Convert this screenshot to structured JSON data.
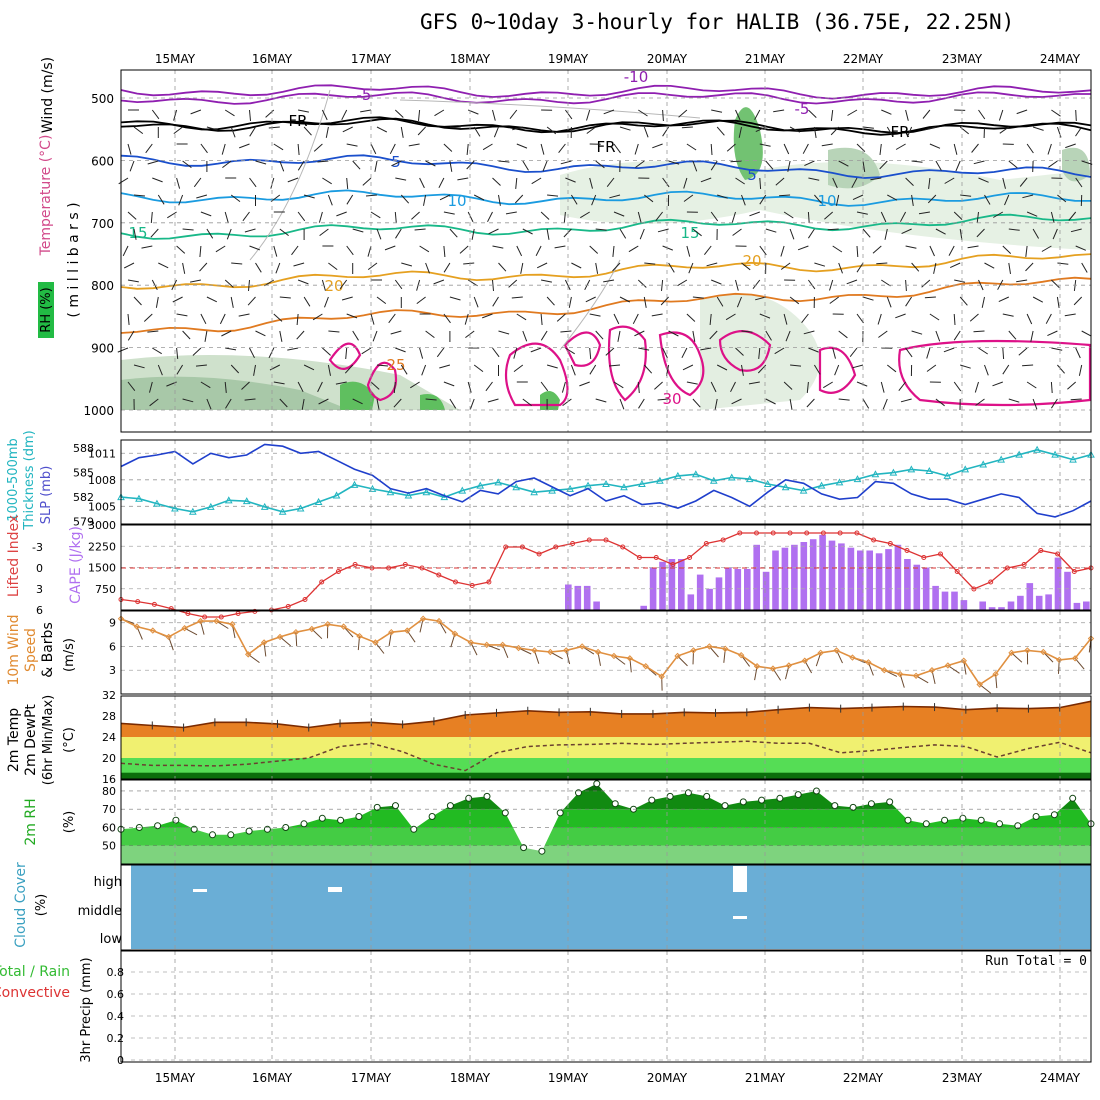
{
  "title": "GFS 0~10day 3-hourly for HALIB (36.75E, 22.25N)",
  "dates": [
    "15MAY",
    "16MAY",
    "17MAY",
    "18MAY",
    "19MAY",
    "20MAY",
    "21MAY",
    "22MAY",
    "23MAY",
    "24MAY"
  ],
  "panel_labels": {
    "upper_wind": "Wind (m/s)",
    "upper_temp": "Temperature (°C)",
    "upper_rh": "RH (%)",
    "upper_p": "( m i l l i b a r s )",
    "thick_1": "1000-500mb",
    "thick_2": "Thickness (dm)",
    "slp": "SLP (mb)",
    "li": "Lifted Index",
    "cape": "CAPE (J/kg)",
    "wind10_1": "10m Wind",
    "wind10_2": "Speed",
    "wind10_3": "& Barbs",
    "wind10_unit": "(m/s)",
    "t2_1": "2m Temp",
    "t2_2": "2m DewPt",
    "t2_3": "(6hr Min/Max)",
    "t2_unit": "(°C)",
    "rh2_1": "2m RH",
    "rh2_unit": "(%)",
    "cloud_1": "Cloud Cover",
    "cloud_unit": "(%)",
    "precip_1": "Total / Rain",
    "precip_2": "Convective",
    "precip_3": "3hr Precip (mm)",
    "run_total": "Run Total = 0"
  },
  "colors": {
    "slp": "#1f3fcc",
    "thickness": "#22b5c0",
    "lifted_index": "#dd3333",
    "cape": "#b070f0",
    "wind_speed": "#e09040",
    "rh_dark": "#008800",
    "rh_mid": "#22cc22",
    "rh_light": "#66dd66",
    "cloud_bg": "#6aaed6",
    "temp_band_hot": "#f0a030",
    "temp_band_warm": "#f0f070",
    "temp_band_cool": "#55dd55"
  },
  "chart_data": [
    {
      "type": "area",
      "panel": "upper-air cross section",
      "yaxis": "pressure (mb)",
      "y_ticks": [
        500,
        600,
        700,
        800,
        900,
        1000
      ],
      "isotherm_labels": [
        "-10",
        "-5",
        "FR",
        "5",
        "10",
        "15",
        "20",
        "25",
        "30"
      ]
    },
    {
      "type": "line",
      "panel": "thickness & slp",
      "thickness_ticks": [
        579,
        582,
        585,
        588
      ],
      "slp_ticks": [
        1005,
        1008,
        1011
      ],
      "series": [
        {
          "name": "SLP",
          "values": [
            1009.5,
            1010.5,
            1010.8,
            1011.2,
            1009.8,
            1011.0,
            1010.5,
            1010.8,
            1012.0,
            1011.8,
            1011.0,
            1011.2,
            1010.2,
            1009.2,
            1008.5,
            1007.0,
            1006.5,
            1007.0,
            1006.2,
            1005.5,
            1006.8,
            1006.4,
            1007.8,
            1008.2,
            1007.2,
            1006.2,
            1007.0,
            1005.6,
            1006.2,
            1005.2,
            1005.4,
            1004.8,
            1005.6,
            1006.8,
            1006.0,
            1005.0,
            1006.6,
            1008.0,
            1007.6,
            1006.4,
            1005.8,
            1006.0,
            1007.8,
            1007.6,
            1006.4,
            1005.8,
            1005.8,
            1005.2,
            1005.8,
            1006.4,
            1006.0,
            1004.2,
            1003.8,
            1004.5,
            1005.6
          ]
        },
        {
          "name": "Thickness",
          "values": [
            582.0,
            581.8,
            581.2,
            580.6,
            580.2,
            580.8,
            581.6,
            581.5,
            580.8,
            580.2,
            580.6,
            581.4,
            582.2,
            583.5,
            583.0,
            582.6,
            582.2,
            582.6,
            582.0,
            582.8,
            583.4,
            583.8,
            583.2,
            582.6,
            582.8,
            583.0,
            583.4,
            583.6,
            583.2,
            583.6,
            584.0,
            584.6,
            584.8,
            584.0,
            584.4,
            584.2,
            583.6,
            583.2,
            582.8,
            583.4,
            583.8,
            584.2,
            584.8,
            585.0,
            585.4,
            585.2,
            584.6,
            585.4,
            586.0,
            586.6,
            587.2,
            587.8,
            587.2,
            586.6,
            587.2
          ]
        }
      ]
    },
    {
      "type": "bar",
      "panel": "lifted index & cape",
      "cape_ticks": [
        750,
        1500,
        2250,
        3000
      ],
      "li_ticks": [
        -3,
        0,
        3,
        6
      ],
      "series": [
        {
          "name": "CAPE",
          "values": [
            0,
            0,
            0,
            0,
            0,
            0,
            0,
            0,
            0,
            0,
            0,
            0,
            0,
            0,
            0,
            0,
            0,
            0,
            0,
            0,
            0,
            0,
            0,
            0,
            0,
            0,
            0,
            0,
            0,
            0,
            0,
            0,
            0,
            0,
            0,
            0,
            0,
            0,
            0,
            0,
            0,
            0,
            0,
            0,
            0,
            0,
            0,
            900,
            850,
            850,
            300,
            0,
            0,
            0,
            0,
            150,
            1500,
            1700,
            1800,
            1800,
            550,
            1250,
            750,
            1150,
            1500,
            1450,
            1450,
            2300,
            1350,
            2100,
            2200,
            2300,
            2400,
            2500,
            2650,
            2450,
            2350,
            2200,
            2100,
            2100,
            2000,
            2150,
            2300,
            1800,
            1600,
            1500,
            850,
            650,
            650,
            350,
            0,
            300,
            100,
            100,
            300,
            500,
            950,
            500,
            550,
            1850,
            1350,
            250,
            300
          ]
        },
        {
          "name": "Lifted Index",
          "values": [
            4.5,
            4.8,
            5.2,
            5.8,
            6.5,
            7,
            7,
            6.5,
            6.2,
            6,
            5.5,
            4.5,
            2,
            0.5,
            -0.5,
            0,
            0,
            -0.5,
            0,
            1,
            2,
            2.5,
            2,
            -3,
            -3,
            -2,
            -3,
            -3.5,
            -4,
            -4,
            -3,
            -1.5,
            -1.5,
            -0.5,
            -1.5,
            -3.5,
            -4,
            -5,
            -5,
            -5,
            -5,
            -5,
            -5,
            -5,
            -5,
            -4,
            -3.5,
            -2.5,
            -1.5,
            -2,
            0.5,
            3,
            2,
            0,
            -0.5,
            -2.5,
            -2,
            0.5,
            0
          ]
        }
      ]
    },
    {
      "type": "line",
      "panel": "10m wind speed",
      "y_ticks": [
        3,
        6,
        9
      ],
      "series": [
        {
          "name": "10m Wind Speed",
          "values": [
            9.5,
            8.5,
            8,
            7.2,
            8.3,
            9.2,
            9.2,
            8.8,
            5,
            6.5,
            7.2,
            7.8,
            8.2,
            8.8,
            8.5,
            7.3,
            6.5,
            7.8,
            8,
            9.5,
            9.2,
            7.6,
            6.5,
            6.2,
            6.2,
            5.8,
            5.5,
            5.3,
            5.5,
            6,
            5.3,
            4.8,
            4.5,
            3.5,
            2.2,
            4.8,
            5.5,
            6,
            5.7,
            4.9,
            3.5,
            3.2,
            3.6,
            4.2,
            5.2,
            5.5,
            4.6,
            4,
            3,
            2.5,
            2.3,
            3,
            3.6,
            4.2,
            1.2,
            2.5,
            5.2,
            5.5,
            5.3,
            4.3,
            4.5,
            7
          ]
        }
      ]
    },
    {
      "type": "area",
      "panel": "2m temp & dewpoint",
      "y_ticks": [
        16,
        20,
        24,
        28,
        32
      ],
      "series": [
        {
          "name": "2m Temp",
          "values": [
            26.6,
            26.2,
            25.8,
            26.8,
            26.8,
            26.5,
            25.8,
            26.6,
            26.8,
            26.4,
            27,
            28.2,
            28.6,
            29,
            28.7,
            28.8,
            28.4,
            28.4,
            28.7,
            28.6,
            28.7,
            29.2,
            29.6,
            29.4,
            29.6,
            29.8,
            29.7,
            29.2,
            29.5,
            29.4,
            29.6,
            30.8
          ]
        },
        {
          "name": "2m DewPt",
          "values": [
            19,
            18.6,
            18.6,
            18.5,
            18.8,
            19.4,
            20,
            22.2,
            22.8,
            21.2,
            18.8,
            17.6,
            21,
            22.2,
            22.5,
            22.6,
            22.8,
            22.6,
            22.8,
            23,
            23.2,
            22.8,
            22.8,
            21,
            21.4,
            22,
            22.5,
            22.2,
            20.2,
            21.8,
            23,
            21
          ]
        }
      ]
    },
    {
      "type": "area",
      "panel": "2m RH",
      "y_ticks": [
        50,
        60,
        70,
        80
      ],
      "series": [
        {
          "name": "2m RH",
          "values": [
            59,
            60,
            61,
            64,
            59,
            56,
            56,
            58,
            59,
            60,
            62,
            65,
            64,
            66,
            71,
            72,
            59,
            66,
            72,
            76,
            77,
            68,
            49,
            47,
            68,
            79,
            84,
            73,
            70,
            75,
            77,
            79,
            77,
            72,
            74,
            75,
            76,
            78,
            80,
            72,
            71,
            73,
            74,
            64,
            62,
            64,
            65,
            64,
            62,
            61,
            66,
            67,
            76,
            62
          ]
        }
      ]
    },
    {
      "type": "heatmap",
      "panel": "cloud cover",
      "y_ticks": [
        "high",
        "middle",
        "low"
      ]
    },
    {
      "type": "bar",
      "panel": "3hr precip",
      "y_ticks": [
        0,
        0.2,
        0.4,
        0.6,
        0.8
      ],
      "series": [
        {
          "name": "3hr Precip",
          "values": []
        }
      ]
    }
  ]
}
